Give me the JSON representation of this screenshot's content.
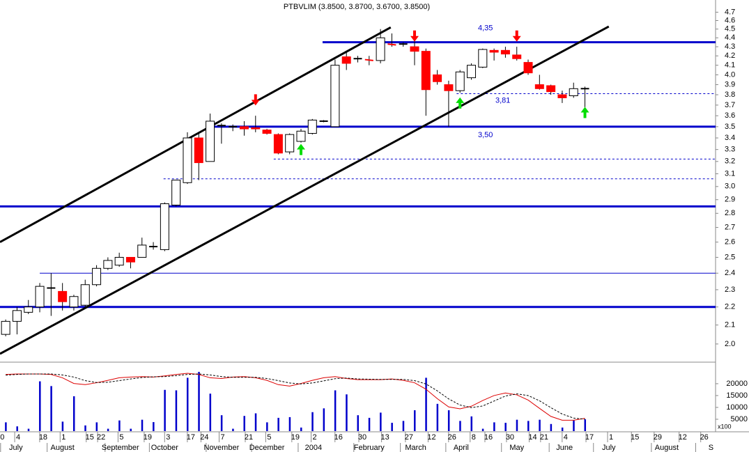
{
  "chart_data": {
    "type": "candlestick",
    "title": "PTBVLIM (3.8500, 3.8700, 3.6700, 3.8500)",
    "log_scale": true,
    "up_color": "#ffffff",
    "down_color": "#ff0000",
    "open": [
      2.05,
      2.12,
      2.17,
      2.2,
      2.31,
      2.29,
      2.2,
      2.21,
      2.33,
      2.43,
      2.45,
      2.5,
      2.5,
      2.57,
      2.55,
      2.86,
      3.03,
      3.4,
      3.2,
      3.51,
      3.5,
      3.5,
      3.49,
      3.47,
      3.43,
      3.28,
      3.37,
      3.44,
      3.55,
      3.5,
      4.19,
      4.17,
      4.16,
      4.15,
      4.33,
      4.33,
      4.3,
      4.25,
      4.0,
      3.9,
      3.84,
      3.97,
      4.08,
      4.26,
      4.26,
      4.21,
      4.13,
      3.9,
      3.89,
      3.8,
      3.79,
      3.86
    ],
    "high": [
      2.13,
      2.2,
      2.24,
      2.34,
      2.4,
      2.34,
      2.27,
      2.36,
      2.45,
      2.5,
      2.53,
      2.5,
      2.63,
      2.6,
      2.88,
      3.05,
      3.45,
      3.45,
      3.62,
      3.53,
      3.52,
      3.55,
      3.6,
      3.48,
      3.44,
      3.44,
      3.48,
      3.57,
      3.56,
      4.16,
      4.25,
      4.2,
      4.2,
      4.5,
      4.45,
      4.35,
      4.36,
      4.28,
      4.05,
      3.94,
      4.05,
      4.12,
      4.28,
      4.28,
      4.3,
      4.3,
      4.16,
      4.0,
      3.9,
      3.84,
      3.92,
      3.88
    ],
    "low": [
      2.04,
      2.05,
      2.16,
      2.17,
      2.15,
      2.18,
      2.18,
      2.2,
      2.32,
      2.42,
      2.44,
      2.43,
      2.5,
      2.55,
      2.54,
      2.85,
      3.02,
      3.05,
      3.2,
      3.35,
      3.46,
      3.42,
      3.45,
      3.43,
      3.26,
      3.26,
      3.36,
      3.43,
      3.54,
      3.5,
      4.05,
      4.13,
      4.1,
      4.12,
      4.3,
      4.3,
      4.1,
      3.6,
      3.9,
      3.5,
      3.82,
      3.95,
      4.07,
      4.15,
      4.18,
      4.15,
      4.0,
      3.85,
      3.8,
      3.72,
      3.77,
      3.68
    ],
    "close": [
      2.12,
      2.18,
      2.2,
      2.32,
      2.31,
      2.23,
      2.26,
      2.33,
      2.43,
      2.48,
      2.5,
      2.47,
      2.58,
      2.57,
      2.87,
      3.05,
      3.4,
      3.19,
      3.55,
      3.51,
      3.5,
      3.48,
      3.48,
      3.44,
      3.27,
      3.43,
      3.46,
      3.56,
      3.55,
      4.1,
      4.12,
      4.17,
      4.15,
      4.4,
      4.32,
      4.33,
      4.25,
      3.85,
      3.93,
      3.84,
      4.03,
      4.1,
      4.27,
      4.24,
      4.22,
      4.17,
      4.02,
      3.86,
      3.83,
      3.77,
      3.86,
      3.86
    ],
    "xlim": [
      -0.5,
      62.5
    ],
    "ylim": [
      1.95,
      4.85
    ],
    "yticks": [
      {
        "value": 2,
        "label": "2.0"
      },
      2.1,
      2.2,
      2.3,
      2.4,
      2.5,
      2.6,
      2.7,
      2.8,
      2.9,
      {
        "value": 3,
        "label": "3.0"
      },
      3.1,
      3.2,
      3.3,
      3.4,
      3.5,
      3.6,
      3.7,
      3.8,
      3.9,
      {
        "value": 4,
        "label": "4.0"
      },
      4.1,
      4.2,
      4.3,
      4.4,
      4.5,
      4.6,
      4.7
    ],
    "xticks": [
      {
        "value": -0.3,
        "label": "0"
      },
      {
        "value": 1.1,
        "label": "4"
      },
      {
        "value": 3.3,
        "label": "18"
      },
      {
        "value": 5.1,
        "label": "1"
      },
      {
        "value": 7.4,
        "label": "15"
      },
      {
        "value": 8.4,
        "label": "22"
      },
      {
        "value": 10.2,
        "label": "5"
      },
      {
        "value": 12.5,
        "label": "19"
      },
      {
        "value": 14.3,
        "label": "3"
      },
      {
        "value": 16.3,
        "label": "17"
      },
      {
        "value": 17.5,
        "label": "24"
      },
      {
        "value": 19.1,
        "label": "7"
      },
      {
        "value": 21.4,
        "label": "21"
      },
      {
        "value": 23.2,
        "label": "5"
      },
      {
        "value": 25.5,
        "label": "19"
      },
      {
        "value": 27.2,
        "label": "2"
      },
      {
        "value": 29.3,
        "label": "16"
      },
      {
        "value": 31.4,
        "label": "30"
      },
      {
        "value": 33.4,
        "label": "13"
      },
      {
        "value": 35.5,
        "label": "27"
      },
      {
        "value": 37.5,
        "label": "12"
      },
      {
        "value": 39.3,
        "label": "26"
      },
      {
        "value": 41.2,
        "label": "8"
      },
      {
        "value": 42.5,
        "label": "16"
      },
      {
        "value": 44.4,
        "label": "30"
      },
      {
        "value": 46.4,
        "label": "14"
      },
      {
        "value": 47.4,
        "label": "21"
      },
      {
        "value": 49.3,
        "label": "4"
      },
      {
        "value": 51.4,
        "label": "17"
      },
      {
        "value": 53.3,
        "label": "1"
      },
      {
        "value": 55.4,
        "label": "15"
      },
      {
        "value": 57.4,
        "label": "29"
      },
      {
        "value": 59.6,
        "label": "12"
      },
      {
        "value": 61.5,
        "label": "26"
      }
    ],
    "month_ticks": [
      {
        "value": 0.9,
        "label": "July"
      },
      {
        "value": 5.0,
        "label": "August"
      },
      {
        "value": 10.1,
        "label": "September"
      },
      {
        "value": 14.0,
        "label": "October"
      },
      {
        "value": 19.0,
        "label": "November"
      },
      {
        "value": 23.0,
        "label": "December"
      },
      {
        "value": 27.1,
        "label": "2004"
      },
      {
        "value": 32.0,
        "label": "February"
      },
      {
        "value": 36.1,
        "label": "March"
      },
      {
        "value": 40.1,
        "label": "April"
      },
      {
        "value": 45.0,
        "label": "May"
      },
      {
        "value": 49.2,
        "label": "June"
      },
      {
        "value": 53.1,
        "label": "July"
      },
      {
        "value": 58.2,
        "label": "August"
      },
      {
        "value": 62.1,
        "label": "S"
      }
    ],
    "hlines": [
      {
        "value": 4.35,
        "from": 27.9,
        "weight": "heavy",
        "style": "solid",
        "color": "#0000cc",
        "label": "4,35"
      },
      {
        "value": 3.81,
        "from": 39.7,
        "weight": "light",
        "style": "dashed",
        "color": "#0000cc",
        "label": "3,81"
      },
      {
        "value": 3.5,
        "from": 17.9,
        "weight": "heavy",
        "style": "solid",
        "color": "#0000cc",
        "label": "3,50"
      },
      {
        "value": 3.22,
        "from": 23.6,
        "weight": "light",
        "style": "dashed",
        "color": "#0000cc"
      },
      {
        "value": 3.06,
        "from": 13.9,
        "weight": "light",
        "style": "dashed",
        "color": "#0000cc"
      },
      {
        "value": 2.85,
        "from": -0.5,
        "weight": "heavy",
        "style": "solid",
        "color": "#0000cc"
      },
      {
        "value": 2.4,
        "from": 3.0,
        "weight": "light",
        "style": "solid",
        "color": "#0000cc"
      },
      {
        "value": 2.2,
        "from": -0.5,
        "weight": "heavy",
        "style": "solid",
        "color": "#0000cc"
      }
    ],
    "trend_lines": [
      {
        "x": [
          -0.5,
          33.9
        ],
        "y": [
          2.6,
          4.52
        ],
        "color": "#000000"
      },
      {
        "x": [
          -0.5,
          53.1
        ],
        "y": [
          1.95,
          4.53
        ],
        "color": "#000000"
      }
    ],
    "sell_signals": {
      "color": "#ff0000",
      "x": [
        22,
        36,
        45
      ],
      "y": [
        3.75,
        4.42,
        4.42
      ]
    },
    "buy_signals": {
      "color": "#00dd00",
      "x": [
        26,
        40,
        51
      ],
      "y": [
        3.3,
        3.72,
        3.63
      ]
    },
    "volume": {
      "color": "#0000cc",
      "unit_label": "x100",
      "ylim": [
        0,
        28500
      ],
      "yticks": [
        5000,
        10000,
        15000,
        20000
      ],
      "values": [
        3700,
        2000,
        1000,
        21000,
        19000,
        4000,
        14700,
        2400,
        3700,
        1000,
        4500,
        1000,
        4800,
        3800,
        17400,
        17200,
        22500,
        25000,
        15800,
        6700,
        1000,
        6400,
        7500,
        3700,
        5600,
        5900,
        1500,
        8000,
        9600,
        17200,
        15500,
        6700,
        5600,
        7800,
        3500,
        4300,
        8800,
        22500,
        11500,
        8800,
        4300,
        6200,
        1000,
        3700,
        3500,
        4800,
        4300,
        4800,
        3000,
        1500,
        4500,
        5000
      ],
      "oscillator": [
        {
          "color": "#dd0000",
          "style": "solid",
          "values": [
            23900,
            24100,
            24100,
            24100,
            23900,
            22500,
            20100,
            19600,
            20400,
            21400,
            22500,
            22800,
            23000,
            22800,
            23300,
            23900,
            24400,
            23900,
            22500,
            22200,
            22800,
            23000,
            22500,
            21400,
            19600,
            19000,
            20100,
            21400,
            22500,
            23000,
            22200,
            21700,
            21700,
            21700,
            22000,
            21400,
            20400,
            17700,
            13700,
            10200,
            9400,
            10500,
            12900,
            15000,
            16100,
            15300,
            13100,
            9600,
            6200,
            4600,
            4600,
            5400
          ]
        },
        {
          "color": "#000000",
          "style": "dashed",
          "values": [
            23600,
            23900,
            24100,
            24100,
            24100,
            23700,
            22800,
            21300,
            20500,
            20600,
            21300,
            22000,
            22600,
            22900,
            23000,
            23400,
            23900,
            24100,
            23700,
            23000,
            22700,
            22700,
            22700,
            22200,
            21300,
            20300,
            19900,
            20300,
            21200,
            22100,
            22400,
            22000,
            21900,
            21800,
            21800,
            21800,
            21300,
            19900,
            17000,
            13600,
            11000,
            9900,
            10600,
            12700,
            14800,
            15700,
            15000,
            12800,
            9900,
            7200,
            5500,
            5000
          ]
        }
      ]
    }
  }
}
